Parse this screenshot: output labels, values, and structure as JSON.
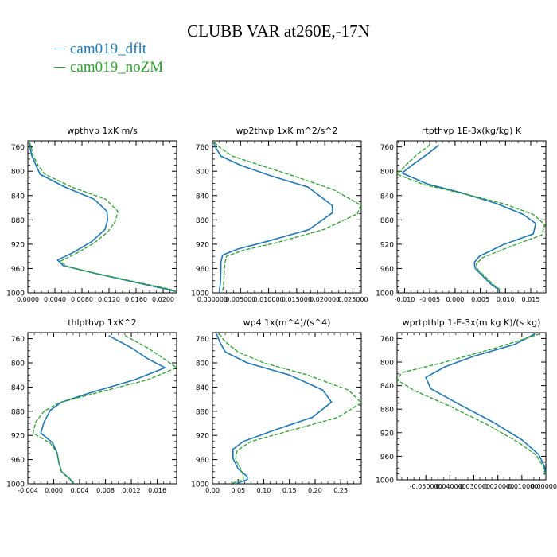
{
  "page_title": "CLUBB VAR at260E,-17N",
  "legend": [
    {
      "name": "cam019_dflt",
      "color": "#1f77b4"
    },
    {
      "name": "cam019_noZM",
      "color": "#2ca02c"
    }
  ],
  "chart_data": [
    {
      "type": "line",
      "title": "wpthvp   1xK m/s",
      "xlim": [
        0,
        0.022
      ],
      "ylim": [
        1000,
        750
      ],
      "xticks": [
        "0.0000",
        "0.0040",
        "0.0080",
        "0.0120",
        "0.0160",
        "0.0200"
      ],
      "xtick_values": [
        0,
        0.004,
        0.008,
        0.012,
        0.016,
        0.02
      ],
      "yticks": [
        760,
        800,
        840,
        880,
        920,
        960,
        1000
      ],
      "series": [
        {
          "name": "cam019_dflt",
          "points": [
            [
              0.0002,
              752
            ],
            [
              0.0003,
              760
            ],
            [
              0.0006,
              775
            ],
            [
              0.0012,
              790
            ],
            [
              0.0018,
              805
            ],
            [
              0.0055,
              826
            ],
            [
              0.0098,
              846
            ],
            [
              0.0117,
              866
            ],
            [
              0.0118,
              880
            ],
            [
              0.0114,
              896
            ],
            [
              0.0094,
              916
            ],
            [
              0.0065,
              935
            ],
            [
              0.0044,
              946
            ],
            [
              0.0052,
              955
            ],
            [
              0.01,
              968
            ],
            [
              0.016,
              983
            ],
            [
              0.0205,
              994
            ],
            [
              0.022,
              998
            ]
          ]
        },
        {
          "name": "cam019_noZM",
          "points": [
            [
              0.0002,
              752
            ],
            [
              0.0005,
              760
            ],
            [
              0.0008,
              775
            ],
            [
              0.0015,
              790
            ],
            [
              0.0025,
              805
            ],
            [
              0.0065,
              826
            ],
            [
              0.0115,
              846
            ],
            [
              0.0133,
              866
            ],
            [
              0.0129,
              883
            ],
            [
              0.0118,
              900
            ],
            [
              0.0098,
              918
            ],
            [
              0.0072,
              935
            ],
            [
              0.0048,
              948
            ],
            [
              0.0058,
              957
            ],
            [
              0.0105,
              969
            ],
            [
              0.0168,
              984
            ],
            [
              0.021,
              994
            ],
            [
              0.022,
              998
            ]
          ]
        }
      ]
    },
    {
      "type": "line",
      "title": "wp2thvp   1xK m^2/s^2",
      "xlim": [
        0,
        0.0265
      ],
      "ylim": [
        1000,
        750
      ],
      "xticks": [
        "0.000000",
        "0.005000",
        "0.010000",
        "0.015000",
        "0.020000",
        "0.025000"
      ],
      "xtick_values": [
        0,
        0.005,
        0.01,
        0.015,
        0.02,
        0.025
      ],
      "yticks": [
        760,
        800,
        840,
        880,
        920,
        960,
        1000
      ],
      "series": [
        {
          "name": "cam019_dflt",
          "points": [
            [
              0.0002,
              752
            ],
            [
              0.0005,
              760
            ],
            [
              0.0015,
              775
            ],
            [
              0.005,
              790
            ],
            [
              0.0105,
              808
            ],
            [
              0.017,
              826
            ],
            [
              0.0213,
              856
            ],
            [
              0.0214,
              868
            ],
            [
              0.0172,
              896
            ],
            [
              0.0095,
              916
            ],
            [
              0.0045,
              928
            ],
            [
              0.0018,
              938
            ],
            [
              0.0015,
              950
            ],
            [
              0.0015,
              965
            ],
            [
              0.0014,
              985
            ],
            [
              0.0012,
              998
            ]
          ]
        },
        {
          "name": "cam019_noZM",
          "points": [
            [
              0.0003,
              752
            ],
            [
              0.0012,
              760
            ],
            [
              0.0035,
              775
            ],
            [
              0.0085,
              790
            ],
            [
              0.0145,
              808
            ],
            [
              0.0215,
              830
            ],
            [
              0.0265,
              856
            ],
            [
              0.0258,
              870
            ],
            [
              0.0198,
              896
            ],
            [
              0.0112,
              918
            ],
            [
              0.0055,
              930
            ],
            [
              0.0025,
              940
            ],
            [
              0.0022,
              952
            ],
            [
              0.0021,
              966
            ],
            [
              0.002,
              985
            ],
            [
              0.0018,
              998
            ]
          ]
        }
      ]
    },
    {
      "type": "line",
      "title": "rtpthvp   1E-3x(kg/kg) K",
      "xlim": [
        -0.0115,
        0.018
      ],
      "ylim": [
        1000,
        750
      ],
      "xticks": [
        "-0.010",
        "-0.005",
        "0.000",
        "0.005",
        "0.010",
        "0.015"
      ],
      "xtick_values": [
        -0.01,
        -0.005,
        0,
        0.005,
        0.01,
        0.015
      ],
      "yticks": [
        760,
        800,
        840,
        880,
        920,
        960,
        1000
      ],
      "series": [
        {
          "name": "cam019_dflt",
          "points": [
            [
              -0.0032,
              757
            ],
            [
              -0.0055,
              772
            ],
            [
              -0.0082,
              788
            ],
            [
              -0.0105,
              803
            ],
            [
              -0.0055,
              821
            ],
            [
              0.0015,
              836
            ],
            [
              0.0082,
              853
            ],
            [
              0.0135,
              871
            ],
            [
              0.016,
              886
            ],
            [
              0.0155,
              903
            ],
            [
              0.0095,
              921
            ],
            [
              0.0048,
              940
            ],
            [
              0.0038,
              950
            ],
            [
              0.004,
              960
            ],
            [
              0.0052,
              970
            ],
            [
              0.007,
              985
            ],
            [
              0.0085,
              994
            ],
            [
              0.0085,
              999
            ]
          ]
        },
        {
          "name": "cam019_noZM",
          "points": [
            [
              -0.005,
              757
            ],
            [
              -0.0075,
              772
            ],
            [
              -0.0095,
              788
            ],
            [
              -0.0115,
              805
            ],
            [
              -0.0062,
              822
            ],
            [
              0.0012,
              836
            ],
            [
              0.0095,
              853
            ],
            [
              0.0155,
              871
            ],
            [
              0.0178,
              888
            ],
            [
              0.0172,
              905
            ],
            [
              0.0112,
              923
            ],
            [
              0.0055,
              942
            ],
            [
              0.0042,
              952
            ],
            [
              0.0045,
              962
            ],
            [
              0.0058,
              972
            ],
            [
              0.0075,
              986
            ],
            [
              0.0088,
              994
            ],
            [
              0.0088,
              999
            ]
          ]
        }
      ]
    },
    {
      "type": "line",
      "title": "thlpthvp   1xK^2",
      "xlim": [
        -0.004,
        0.019
      ],
      "ylim": [
        1000,
        750
      ],
      "xticks": [
        "-0.004",
        "0.000",
        "0.004",
        "0.008",
        "0.012",
        "0.016"
      ],
      "xtick_values": [
        -0.004,
        0,
        0.004,
        0.008,
        0.012,
        0.016
      ],
      "yticks": [
        760,
        800,
        840,
        880,
        920,
        960,
        1000
      ],
      "series": [
        {
          "name": "cam019_dflt",
          "points": [
            [
              0.0085,
              755
            ],
            [
              0.012,
              775
            ],
            [
              0.0145,
              793
            ],
            [
              0.0172,
              808
            ],
            [
              0.0125,
              828
            ],
            [
              0.0055,
              850
            ],
            [
              0.0012,
              865
            ],
            [
              -0.0005,
              878
            ],
            [
              -0.0015,
              898
            ],
            [
              -0.002,
              916
            ],
            [
              -0.0002,
              932
            ],
            [
              0.0005,
              948
            ],
            [
              0.0008,
              965
            ],
            [
              0.0012,
              980
            ],
            [
              0.0025,
              992
            ],
            [
              0.003,
              999
            ]
          ]
        },
        {
          "name": "cam019_noZM",
          "points": [
            [
              0.011,
              755
            ],
            [
              0.0145,
              775
            ],
            [
              0.017,
              793
            ],
            [
              0.019,
              808
            ],
            [
              0.0145,
              828
            ],
            [
              0.0065,
              850
            ],
            [
              0.0008,
              866
            ],
            [
              -0.0015,
              880
            ],
            [
              -0.0028,
              898
            ],
            [
              -0.0032,
              916
            ],
            [
              -0.0005,
              933
            ],
            [
              0.0005,
              949
            ],
            [
              0.0008,
              965
            ],
            [
              0.0012,
              980
            ],
            [
              0.0025,
              992
            ],
            [
              0.0032,
              999
            ]
          ]
        }
      ]
    },
    {
      "type": "line",
      "title": "wp4   1x(m^4)/(s^4)",
      "xlim": [
        0,
        0.29
      ],
      "ylim": [
        1000,
        750
      ],
      "xticks": [
        "0.00",
        "0.05",
        "0.10",
        "0.15",
        "0.20",
        "0.25"
      ],
      "xtick_values": [
        0,
        0.05,
        0.1,
        0.15,
        0.2,
        0.25
      ],
      "yticks": [
        760,
        800,
        840,
        880,
        920,
        960,
        1000
      ],
      "series": [
        {
          "name": "cam019_dflt",
          "points": [
            [
              0.008,
              752
            ],
            [
              0.014,
              765
            ],
            [
              0.025,
              782
            ],
            [
              0.068,
              800
            ],
            [
              0.15,
              820
            ],
            [
              0.215,
              845
            ],
            [
              0.232,
              865
            ],
            [
              0.195,
              890
            ],
            [
              0.125,
              910
            ],
            [
              0.06,
              930
            ],
            [
              0.04,
              943
            ],
            [
              0.04,
              958
            ],
            [
              0.05,
              975
            ],
            [
              0.068,
              988
            ],
            [
              0.068,
              993
            ],
            [
              0.045,
              1000
            ]
          ]
        },
        {
          "name": "cam019_noZM",
          "points": [
            [
              0.013,
              752
            ],
            [
              0.025,
              765
            ],
            [
              0.05,
              782
            ],
            [
              0.1,
              800
            ],
            [
              0.185,
              820
            ],
            [
              0.265,
              845
            ],
            [
              0.29,
              866
            ],
            [
              0.245,
              890
            ],
            [
              0.16,
              910
            ],
            [
              0.075,
              930
            ],
            [
              0.048,
              945
            ],
            [
              0.045,
              960
            ],
            [
              0.055,
              975
            ],
            [
              0.06,
              987
            ],
            [
              0.06,
              993
            ],
            [
              0.035,
              1000
            ]
          ]
        }
      ]
    },
    {
      "type": "line",
      "title": "wprtpthlp   1-E-3x(m kg K)/(s kg)",
      "xlim": [
        -0.062,
        0.0
      ],
      "ylim": [
        1000,
        750
      ],
      "xticks": [
        "-0.050000",
        "-0.040000",
        "-0.030000",
        "-0.020000",
        "-0.010000",
        "0.000000"
      ],
      "xtick_values": [
        -0.05,
        -0.04,
        -0.03,
        -0.02,
        -0.01,
        0.0
      ],
      "yticks": [
        760,
        800,
        840,
        880,
        920,
        960,
        1000
      ],
      "series": [
        {
          "name": "cam019_dflt",
          "points": [
            [
              -0.0045,
              752
            ],
            [
              -0.013,
              770
            ],
            [
              -0.03,
              790
            ],
            [
              -0.042,
              808
            ],
            [
              -0.05,
              826
            ],
            [
              -0.048,
              845
            ],
            [
              -0.036,
              872
            ],
            [
              -0.022,
              902
            ],
            [
              -0.01,
              932
            ],
            [
              -0.003,
              957
            ],
            [
              -0.0005,
              978
            ],
            [
              -0.0002,
              992
            ]
          ]
        },
        {
          "name": "cam019_noZM",
          "points": [
            [
              -0.0025,
              752
            ],
            [
              -0.02,
              775
            ],
            [
              -0.042,
              800
            ],
            [
              -0.06,
              818
            ],
            [
              -0.062,
              830
            ],
            [
              -0.055,
              848
            ],
            [
              -0.04,
              875
            ],
            [
              -0.025,
              905
            ],
            [
              -0.012,
              935
            ],
            [
              -0.004,
              958
            ],
            [
              -0.001,
              978
            ],
            [
              -0.0003,
              992
            ]
          ]
        }
      ]
    }
  ]
}
